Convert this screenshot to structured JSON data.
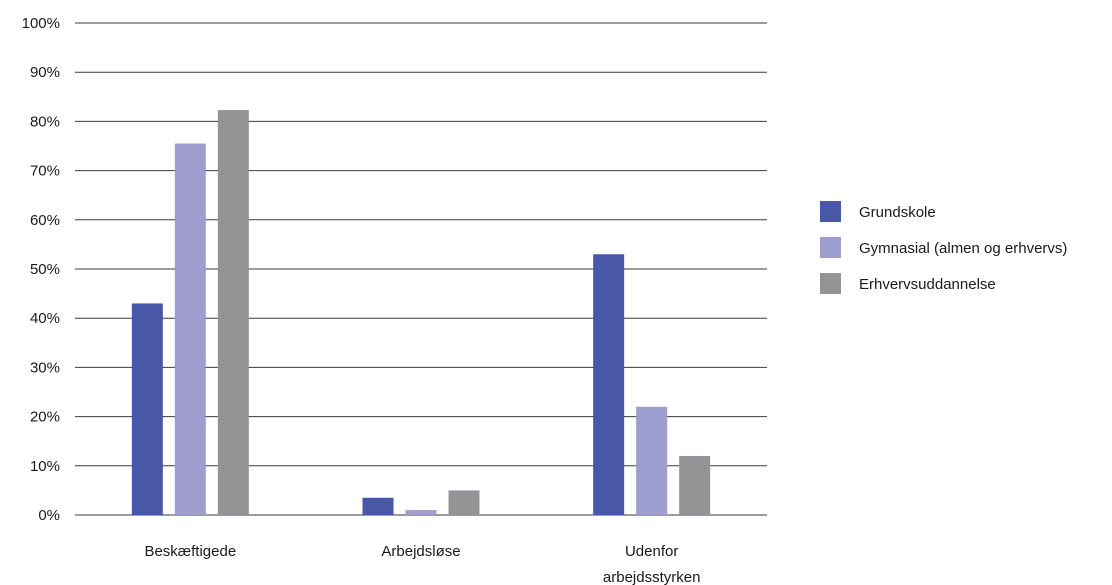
{
  "chart_data": {
    "type": "bar",
    "title": "",
    "xlabel": "",
    "ylabel": "",
    "ylim": [
      0,
      100
    ],
    "yticks": [
      "0%",
      "10%",
      "20%",
      "30%",
      "40%",
      "50%",
      "60%",
      "70%",
      "80%",
      "90%",
      "100%"
    ],
    "grid": true,
    "legend_position": "right",
    "categories": [
      [
        "Beskæftigede"
      ],
      [
        "Arbejdsløse"
      ],
      [
        "Udenfor",
        "arbejdsstyrken"
      ]
    ],
    "series": [
      {
        "name": "Grundskole",
        "color": "#4857a7",
        "values": [
          43,
          3.5,
          53
        ]
      },
      {
        "name": "Gymnasial (almen og erhvervs)",
        "color": "#9e9dcf",
        "values": [
          75.5,
          1,
          22
        ]
      },
      {
        "name": "Erhvervsuddannelse",
        "color": "#939496",
        "values": [
          82.3,
          5,
          12
        ]
      }
    ]
  }
}
